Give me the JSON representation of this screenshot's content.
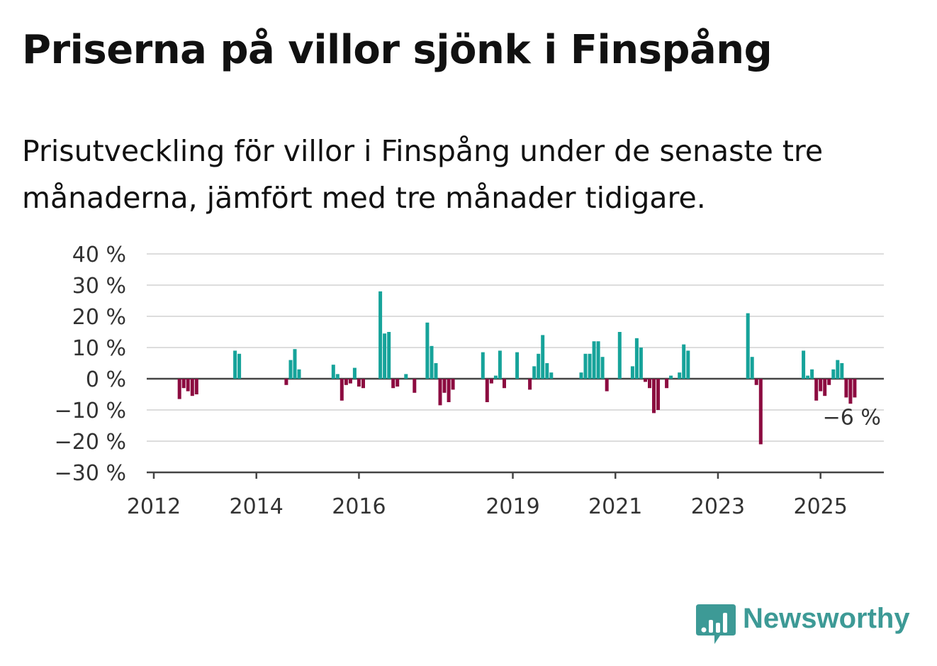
{
  "header": {
    "title": "Priserna på villor sjönk i Finspång",
    "subtitle": "Prisutveckling för villor i Finspång under de senaste tre månaderna, jämfört med tre månader tidigare."
  },
  "brand": {
    "name": "Newsworthy",
    "color": "#3d9a96"
  },
  "chart_data": {
    "type": "bar",
    "title": "Priserna på villor sjönk i Finspång",
    "subtitle": "Prisutveckling för villor i Finspång under de senaste tre månaderna, jämfört med tre månader tidigare.",
    "xlabel": "",
    "ylabel": "",
    "ylim": [
      -30,
      40
    ],
    "xlim": [
      "2012-01",
      "2026-04"
    ],
    "y_ticks": [
      40,
      30,
      20,
      10,
      0,
      -10,
      -20,
      -30
    ],
    "y_tick_labels": [
      "40 %",
      "30 %",
      "20 %",
      "10 %",
      "0 %",
      "−10 %",
      "−20 %",
      "−30 %"
    ],
    "x_ticks": [
      "2012-01",
      "2014-01",
      "2016-01",
      "2019-01",
      "2021-01",
      "2023-01",
      "2025-01"
    ],
    "x_tick_labels": [
      "2012",
      "2014",
      "2016",
      "2019",
      "2021",
      "2023",
      "2025"
    ],
    "grid": true,
    "colors": {
      "positive": "#16a39a",
      "negative": "#8c0b40",
      "grid": "#dddddd",
      "axis": "#444444"
    },
    "annotation": {
      "text": "−6 %",
      "x": "2025-08",
      "value": -6
    },
    "points": [
      {
        "x": "2012-07",
        "value": -6.5
      },
      {
        "x": "2012-08",
        "value": -3
      },
      {
        "x": "2012-09",
        "value": -4
      },
      {
        "x": "2012-10",
        "value": -5.5
      },
      {
        "x": "2012-11",
        "value": -5
      },
      {
        "x": "2013-08",
        "value": 9
      },
      {
        "x": "2013-09",
        "value": 8
      },
      {
        "x": "2014-08",
        "value": -2
      },
      {
        "x": "2014-09",
        "value": 6
      },
      {
        "x": "2014-10",
        "value": 9.5
      },
      {
        "x": "2014-11",
        "value": 3
      },
      {
        "x": "2015-07",
        "value": 4.5
      },
      {
        "x": "2015-08",
        "value": 1.5
      },
      {
        "x": "2015-09",
        "value": -7
      },
      {
        "x": "2015-10",
        "value": -2
      },
      {
        "x": "2015-11",
        "value": -1.5
      },
      {
        "x": "2015-12",
        "value": 3.5
      },
      {
        "x": "2016-01",
        "value": -2.5
      },
      {
        "x": "2016-02",
        "value": -3
      },
      {
        "x": "2016-06",
        "value": 28
      },
      {
        "x": "2016-07",
        "value": 14.5
      },
      {
        "x": "2016-08",
        "value": 15
      },
      {
        "x": "2016-09",
        "value": -3
      },
      {
        "x": "2016-10",
        "value": -2.5
      },
      {
        "x": "2016-12",
        "value": 1.5
      },
      {
        "x": "2017-02",
        "value": -4.5
      },
      {
        "x": "2017-05",
        "value": 18
      },
      {
        "x": "2017-06",
        "value": 10.5
      },
      {
        "x": "2017-07",
        "value": 5
      },
      {
        "x": "2017-08",
        "value": -8.5
      },
      {
        "x": "2017-09",
        "value": -4.5
      },
      {
        "x": "2017-10",
        "value": -7.5
      },
      {
        "x": "2017-11",
        "value": -3.5
      },
      {
        "x": "2018-06",
        "value": 8.5
      },
      {
        "x": "2018-07",
        "value": -7.5
      },
      {
        "x": "2018-08",
        "value": -1.5
      },
      {
        "x": "2018-09",
        "value": 1
      },
      {
        "x": "2018-10",
        "value": 9
      },
      {
        "x": "2018-11",
        "value": -3
      },
      {
        "x": "2019-02",
        "value": 8.5
      },
      {
        "x": "2019-05",
        "value": -3.5
      },
      {
        "x": "2019-06",
        "value": 4
      },
      {
        "x": "2019-07",
        "value": 8
      },
      {
        "x": "2019-08",
        "value": 14
      },
      {
        "x": "2019-09",
        "value": 5
      },
      {
        "x": "2019-10",
        "value": 2
      },
      {
        "x": "2020-05",
        "value": 2
      },
      {
        "x": "2020-06",
        "value": 8
      },
      {
        "x": "2020-07",
        "value": 8
      },
      {
        "x": "2020-08",
        "value": 12
      },
      {
        "x": "2020-09",
        "value": 12
      },
      {
        "x": "2020-10",
        "value": 7
      },
      {
        "x": "2020-11",
        "value": -4
      },
      {
        "x": "2021-02",
        "value": 15
      },
      {
        "x": "2021-05",
        "value": 4
      },
      {
        "x": "2021-06",
        "value": 13
      },
      {
        "x": "2021-07",
        "value": 10
      },
      {
        "x": "2021-08",
        "value": -1
      },
      {
        "x": "2021-09",
        "value": -3
      },
      {
        "x": "2021-10",
        "value": -11
      },
      {
        "x": "2021-11",
        "value": -10
      },
      {
        "x": "2022-01",
        "value": -3
      },
      {
        "x": "2022-02",
        "value": 1
      },
      {
        "x": "2022-04",
        "value": 2
      },
      {
        "x": "2022-05",
        "value": 11
      },
      {
        "x": "2022-06",
        "value": 9
      },
      {
        "x": "2023-08",
        "value": 21
      },
      {
        "x": "2023-09",
        "value": 7
      },
      {
        "x": "2023-10",
        "value": -2
      },
      {
        "x": "2023-11",
        "value": -21
      },
      {
        "x": "2024-09",
        "value": 9
      },
      {
        "x": "2024-10",
        "value": 1
      },
      {
        "x": "2024-11",
        "value": 3
      },
      {
        "x": "2024-12",
        "value": -7
      },
      {
        "x": "2025-01",
        "value": -4
      },
      {
        "x": "2025-02",
        "value": -5.5
      },
      {
        "x": "2025-03",
        "value": -2
      },
      {
        "x": "2025-04",
        "value": 3
      },
      {
        "x": "2025-05",
        "value": 6
      },
      {
        "x": "2025-06",
        "value": 5
      },
      {
        "x": "2025-07",
        "value": -6
      },
      {
        "x": "2025-08",
        "value": -8
      },
      {
        "x": "2025-09",
        "value": -6
      }
    ]
  }
}
